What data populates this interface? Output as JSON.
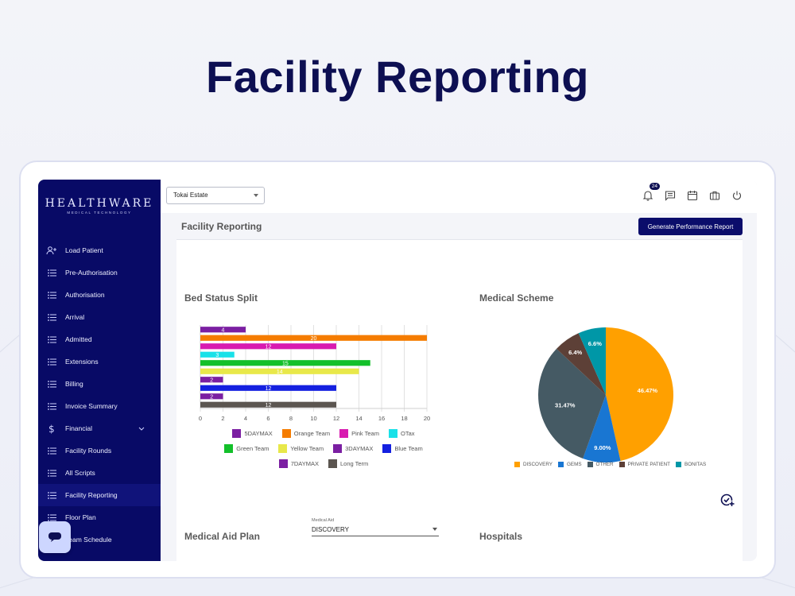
{
  "hero": {
    "title": "Facility Reporting"
  },
  "sidebar": {
    "logo": "HEALTHWARE",
    "logo_sub": "MEDICAL TECHNOLOGY",
    "items": [
      {
        "label": "Load Patient",
        "icon": "user-plus-icon"
      },
      {
        "label": "Pre-Authorisation",
        "icon": "list-icon"
      },
      {
        "label": "Authorisation",
        "icon": "list-icon"
      },
      {
        "label": "Arrival",
        "icon": "list-icon"
      },
      {
        "label": "Admitted",
        "icon": "list-icon"
      },
      {
        "label": "Extensions",
        "icon": "list-icon"
      },
      {
        "label": "Billing",
        "icon": "list-icon"
      },
      {
        "label": "Invoice Summary",
        "icon": "list-icon"
      },
      {
        "label": "Financial",
        "icon": "dollar-icon"
      },
      {
        "label": "Facility Rounds",
        "icon": "list-icon"
      },
      {
        "label": "All Scripts",
        "icon": "list-icon"
      },
      {
        "label": "Facility Reporting",
        "icon": "list-icon"
      },
      {
        "label": "Floor Plan",
        "icon": "list-icon"
      },
      {
        "label": "Team Schedule",
        "icon": "list-icon"
      }
    ],
    "active": "Facility Reporting"
  },
  "topbar": {
    "estate": "Tokai Estate",
    "notification_count": "24"
  },
  "page": {
    "title": "Facility Reporting",
    "generate_button": "Generate Performance Report",
    "bed_status_title": "Bed Status Split",
    "medical_scheme_title": "Medical Scheme",
    "medical_aid_plan_title": "Medical Aid Plan",
    "hospitals_title": "Hospitals",
    "medical_aid_label": "Medical Aid",
    "medical_aid_value": "DISCOVERY"
  },
  "chart_data": [
    {
      "type": "bar",
      "orientation": "horizontal",
      "title": "Bed Status Split",
      "xlim": [
        0,
        20
      ],
      "xticks": [
        "0",
        "2",
        "4",
        "6",
        "8",
        "10",
        "12",
        "14",
        "16",
        "18",
        "20"
      ],
      "grid": true,
      "legend_position": "bottom",
      "series": [
        {
          "name": "5DAYMAX",
          "value": 4,
          "color": "#7b1fa2"
        },
        {
          "name": "Orange Team",
          "value": 20,
          "color": "#f57c00"
        },
        {
          "name": "Pink Team",
          "value": 12,
          "color": "#d81bb0"
        },
        {
          "name": "OTax",
          "value": 3,
          "color": "#19e1e8"
        },
        {
          "name": "Green Team",
          "value": 15,
          "color": "#13c02a"
        },
        {
          "name": "Yellow Team",
          "value": 14,
          "color": "#e8e84a"
        },
        {
          "name": "3DAYMAX",
          "value": 2,
          "color": "#7b1fa2"
        },
        {
          "name": "Blue Team",
          "value": 12,
          "color": "#1420e0"
        },
        {
          "name": "7DAYMAX",
          "value": 2,
          "color": "#7b1fa2"
        },
        {
          "name": "Long Term",
          "value": 12,
          "color": "#5b5550"
        }
      ]
    },
    {
      "type": "pie",
      "title": "Medical Scheme",
      "legend_position": "bottom",
      "slices": [
        {
          "name": "DISCOVERY",
          "value": 46.47,
          "label": "46.47%",
          "color": "#ffa000"
        },
        {
          "name": "GEMS",
          "value": 9.0,
          "label": "9.00%",
          "color": "#1976d2"
        },
        {
          "name": "OTHER",
          "value": 31.47,
          "label": "31.47%",
          "color": "#455a64"
        },
        {
          "name": "PRIVATE PATIENT",
          "value": 6.4,
          "label": "6.4%",
          "color": "#5d4037"
        },
        {
          "name": "BONITAS",
          "value": 6.6,
          "label": "6.6%",
          "color": "#0097a7"
        }
      ]
    }
  ]
}
